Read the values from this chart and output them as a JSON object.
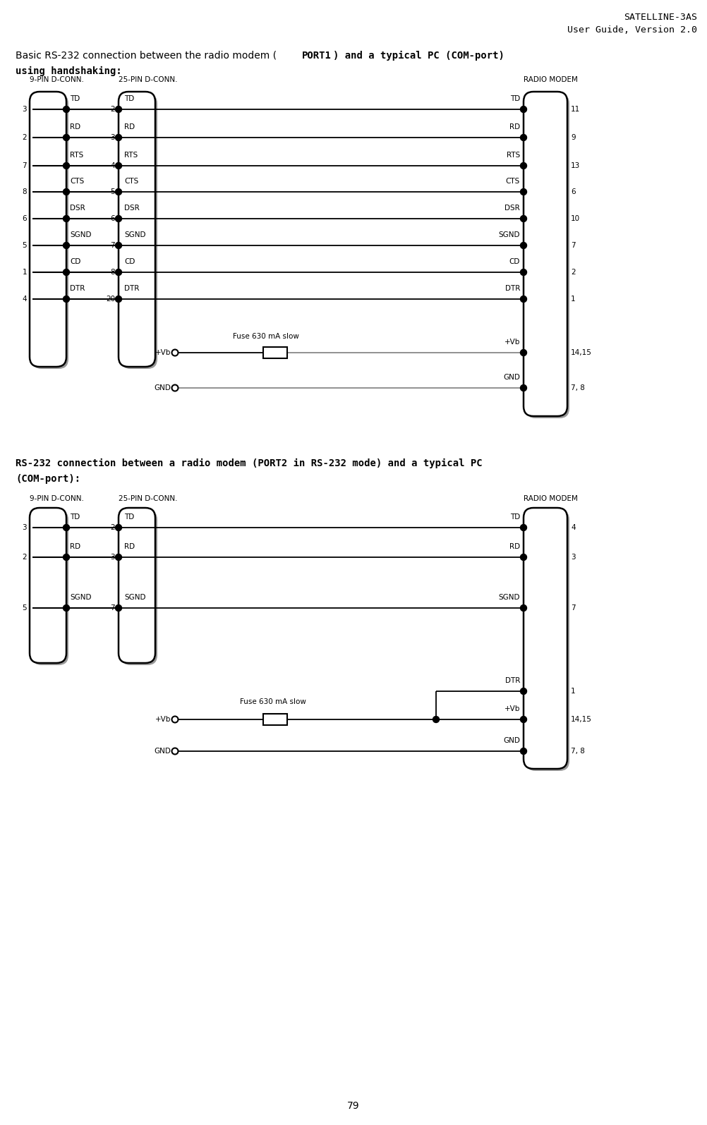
{
  "title_line1": "SATELLINE-3AS",
  "title_line2": "User Guide, Version 2.0",
  "page_number": "79",
  "bg_color": "#ffffff",
  "diagram1": {
    "conn9_label": "9-PIN D-CONN.",
    "conn25_label": "25-PIN D-CONN.",
    "modem_label": "RADIO MODEM",
    "conn9_pins": [
      {
        "pin": "3",
        "label": "TD"
      },
      {
        "pin": "2",
        "label": "RD"
      },
      {
        "pin": "7",
        "label": "RTS"
      },
      {
        "pin": "8",
        "label": "CTS"
      },
      {
        "pin": "6",
        "label": "DSR"
      },
      {
        "pin": "5",
        "label": "SGND"
      },
      {
        "pin": "1",
        "label": "CD"
      },
      {
        "pin": "4",
        "label": "DTR"
      }
    ],
    "conn25_pins": [
      {
        "pin": "2",
        "label": "TD"
      },
      {
        "pin": "3",
        "label": "RD"
      },
      {
        "pin": "4",
        "label": "RTS"
      },
      {
        "pin": "5",
        "label": "CTS"
      },
      {
        "pin": "6",
        "label": "DSR"
      },
      {
        "pin": "7",
        "label": "SGND"
      },
      {
        "pin": "8",
        "label": "CD"
      },
      {
        "pin": "20",
        "label": "DTR"
      }
    ],
    "modem_pins": [
      {
        "pin": "11",
        "label": "TD"
      },
      {
        "pin": "9",
        "label": "RD"
      },
      {
        "pin": "13",
        "label": "RTS"
      },
      {
        "pin": "6",
        "label": "CTS"
      },
      {
        "pin": "10",
        "label": "DSR"
      },
      {
        "pin": "7",
        "label": "SGND"
      },
      {
        "pin": "2",
        "label": "CD"
      },
      {
        "pin": "1",
        "label": "DTR"
      },
      {
        "pin": "14,15",
        "label": "+Vb"
      },
      {
        "pin": "7, 8",
        "label": "GND"
      }
    ]
  },
  "diagram2": {
    "conn9_label": "9-PIN D-CONN.",
    "conn25_label": "25-PIN D-CONN.",
    "modem_label": "RADIO MODEM",
    "conn9_pins": [
      {
        "pin": "3",
        "label": "TD"
      },
      {
        "pin": "2",
        "label": "RD"
      },
      {
        "pin": "5",
        "label": "SGND"
      }
    ],
    "conn25_pins": [
      {
        "pin": "2",
        "label": "TD"
      },
      {
        "pin": "3",
        "label": "RD"
      },
      {
        "pin": "7",
        "label": "SGND"
      }
    ],
    "modem_pins": [
      {
        "pin": "4",
        "label": "TD"
      },
      {
        "pin": "3",
        "label": "RD"
      },
      {
        "pin": "7",
        "label": "SGND"
      },
      {
        "pin": "1",
        "label": "DTR"
      },
      {
        "pin": "14,15",
        "label": "+Vb"
      },
      {
        "pin": "7, 8",
        "label": "GND"
      }
    ]
  }
}
